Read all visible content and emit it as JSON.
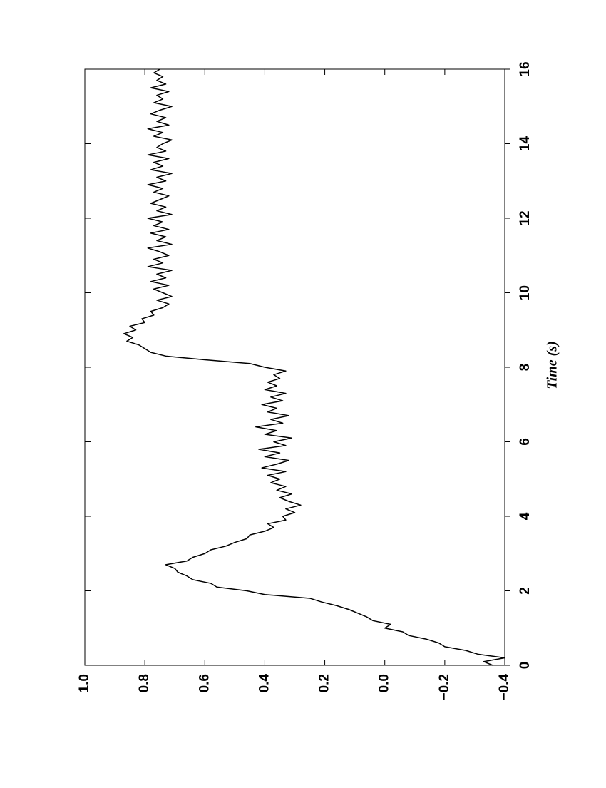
{
  "chart_data": {
    "type": "line",
    "xlabel": "Time (s)",
    "x": [
      0,
      0.1,
      0.2,
      0.3,
      0.4,
      0.5,
      0.6,
      0.7,
      0.8,
      0.9,
      1,
      1.1,
      1.2,
      1.3,
      1.4,
      1.5,
      1.6,
      1.7,
      1.8,
      1.9,
      2,
      2.1,
      2.2,
      2.3,
      2.4,
      2.5,
      2.6,
      2.7,
      2.8,
      2.9,
      3,
      3.1,
      3.2,
      3.3,
      3.4,
      3.5,
      3.6,
      3.7,
      3.8,
      3.9,
      4,
      4.1,
      4.2,
      4.3,
      4.4,
      4.5,
      4.6,
      4.7,
      4.8,
      4.9,
      5,
      5.1,
      5.2,
      5.3,
      5.4,
      5.5,
      5.6,
      5.7,
      5.8,
      5.9,
      6,
      6.1,
      6.2,
      6.3,
      6.4,
      6.5,
      6.6,
      6.7,
      6.8,
      6.9,
      7,
      7.1,
      7.2,
      7.3,
      7.4,
      7.5,
      7.6,
      7.7,
      7.8,
      7.9,
      8,
      8.1,
      8.2,
      8.3,
      8.4,
      8.5,
      8.6,
      8.7,
      8.8,
      8.9,
      9,
      9.1,
      9.2,
      9.3,
      9.4,
      9.5,
      9.6,
      9.7,
      9.8,
      9.9,
      10,
      10.1,
      10.2,
      10.3,
      10.4,
      10.5,
      10.6,
      10.7,
      10.8,
      10.9,
      11,
      11.1,
      11.2,
      11.3,
      11.4,
      11.5,
      11.6,
      11.7,
      11.8,
      11.9,
      12,
      12.1,
      12.2,
      12.3,
      12.4,
      12.5,
      12.6,
      12.7,
      12.8,
      12.9,
      13,
      13.1,
      13.2,
      13.3,
      13.4,
      13.5,
      13.6,
      13.7,
      13.8,
      13.9,
      14,
      14.1,
      14.2,
      14.3,
      14.4,
      14.5,
      14.6,
      14.7,
      14.8,
      14.9,
      15,
      15.1,
      15.2,
      15.3,
      15.4,
      15.5,
      15.6,
      15.7,
      15.8,
      15.9,
      16
    ],
    "values": [
      -0.36,
      -0.33,
      -0.4,
      -0.31,
      -0.27,
      -0.2,
      -0.18,
      -0.14,
      -0.08,
      -0.06,
      0,
      -0.02,
      0.04,
      0.06,
      0.09,
      0.12,
      0.16,
      0.21,
      0.25,
      0.4,
      0.46,
      0.56,
      0.58,
      0.64,
      0.66,
      0.69,
      0.7,
      0.73,
      0.66,
      0.64,
      0.6,
      0.58,
      0.53,
      0.5,
      0.46,
      0.45,
      0.4,
      0.37,
      0.39,
      0.33,
      0.34,
      0.3,
      0.33,
      0.28,
      0.32,
      0.35,
      0.31,
      0.36,
      0.33,
      0.38,
      0.35,
      0.39,
      0.33,
      0.41,
      0.36,
      0.32,
      0.4,
      0.35,
      0.42,
      0.33,
      0.37,
      0.31,
      0.4,
      0.36,
      0.43,
      0.34,
      0.38,
      0.32,
      0.39,
      0.36,
      0.41,
      0.34,
      0.38,
      0.33,
      0.4,
      0.36,
      0.39,
      0.35,
      0.37,
      0.33,
      0.4,
      0.45,
      0.6,
      0.73,
      0.78,
      0.8,
      0.82,
      0.86,
      0.84,
      0.87,
      0.83,
      0.85,
      0.8,
      0.81,
      0.77,
      0.78,
      0.74,
      0.72,
      0.76,
      0.71,
      0.74,
      0.77,
      0.72,
      0.78,
      0.73,
      0.76,
      0.71,
      0.79,
      0.74,
      0.77,
      0.72,
      0.75,
      0.79,
      0.71,
      0.76,
      0.73,
      0.78,
      0.72,
      0.77,
      0.74,
      0.79,
      0.71,
      0.76,
      0.73,
      0.78,
      0.75,
      0.72,
      0.77,
      0.74,
      0.79,
      0.73,
      0.76,
      0.71,
      0.78,
      0.74,
      0.77,
      0.72,
      0.79,
      0.73,
      0.76,
      0.74,
      0.71,
      0.77,
      0.74,
      0.79,
      0.72,
      0.76,
      0.73,
      0.78,
      0.75,
      0.71,
      0.77,
      0.74,
      0.76,
      0.72,
      0.78,
      0.73,
      0.76,
      0.74,
      0.77,
      0.75
    ],
    "color": "#000000",
    "xlim": [
      0,
      16
    ],
    "xticks": [
      0,
      2,
      4,
      6,
      8,
      10,
      12,
      14,
      16
    ],
    "ylim": [
      -0.4,
      1.0
    ],
    "yticks": [
      {
        "value": -0.4,
        "label": "−0.4"
      },
      {
        "value": -0.2,
        "label": "−0.2"
      },
      {
        "value": 0,
        "label": "0.0"
      },
      0.2,
      0.4,
      0.6,
      0.8,
      {
        "value": 1,
        "label": "1.0"
      }
    ]
  }
}
